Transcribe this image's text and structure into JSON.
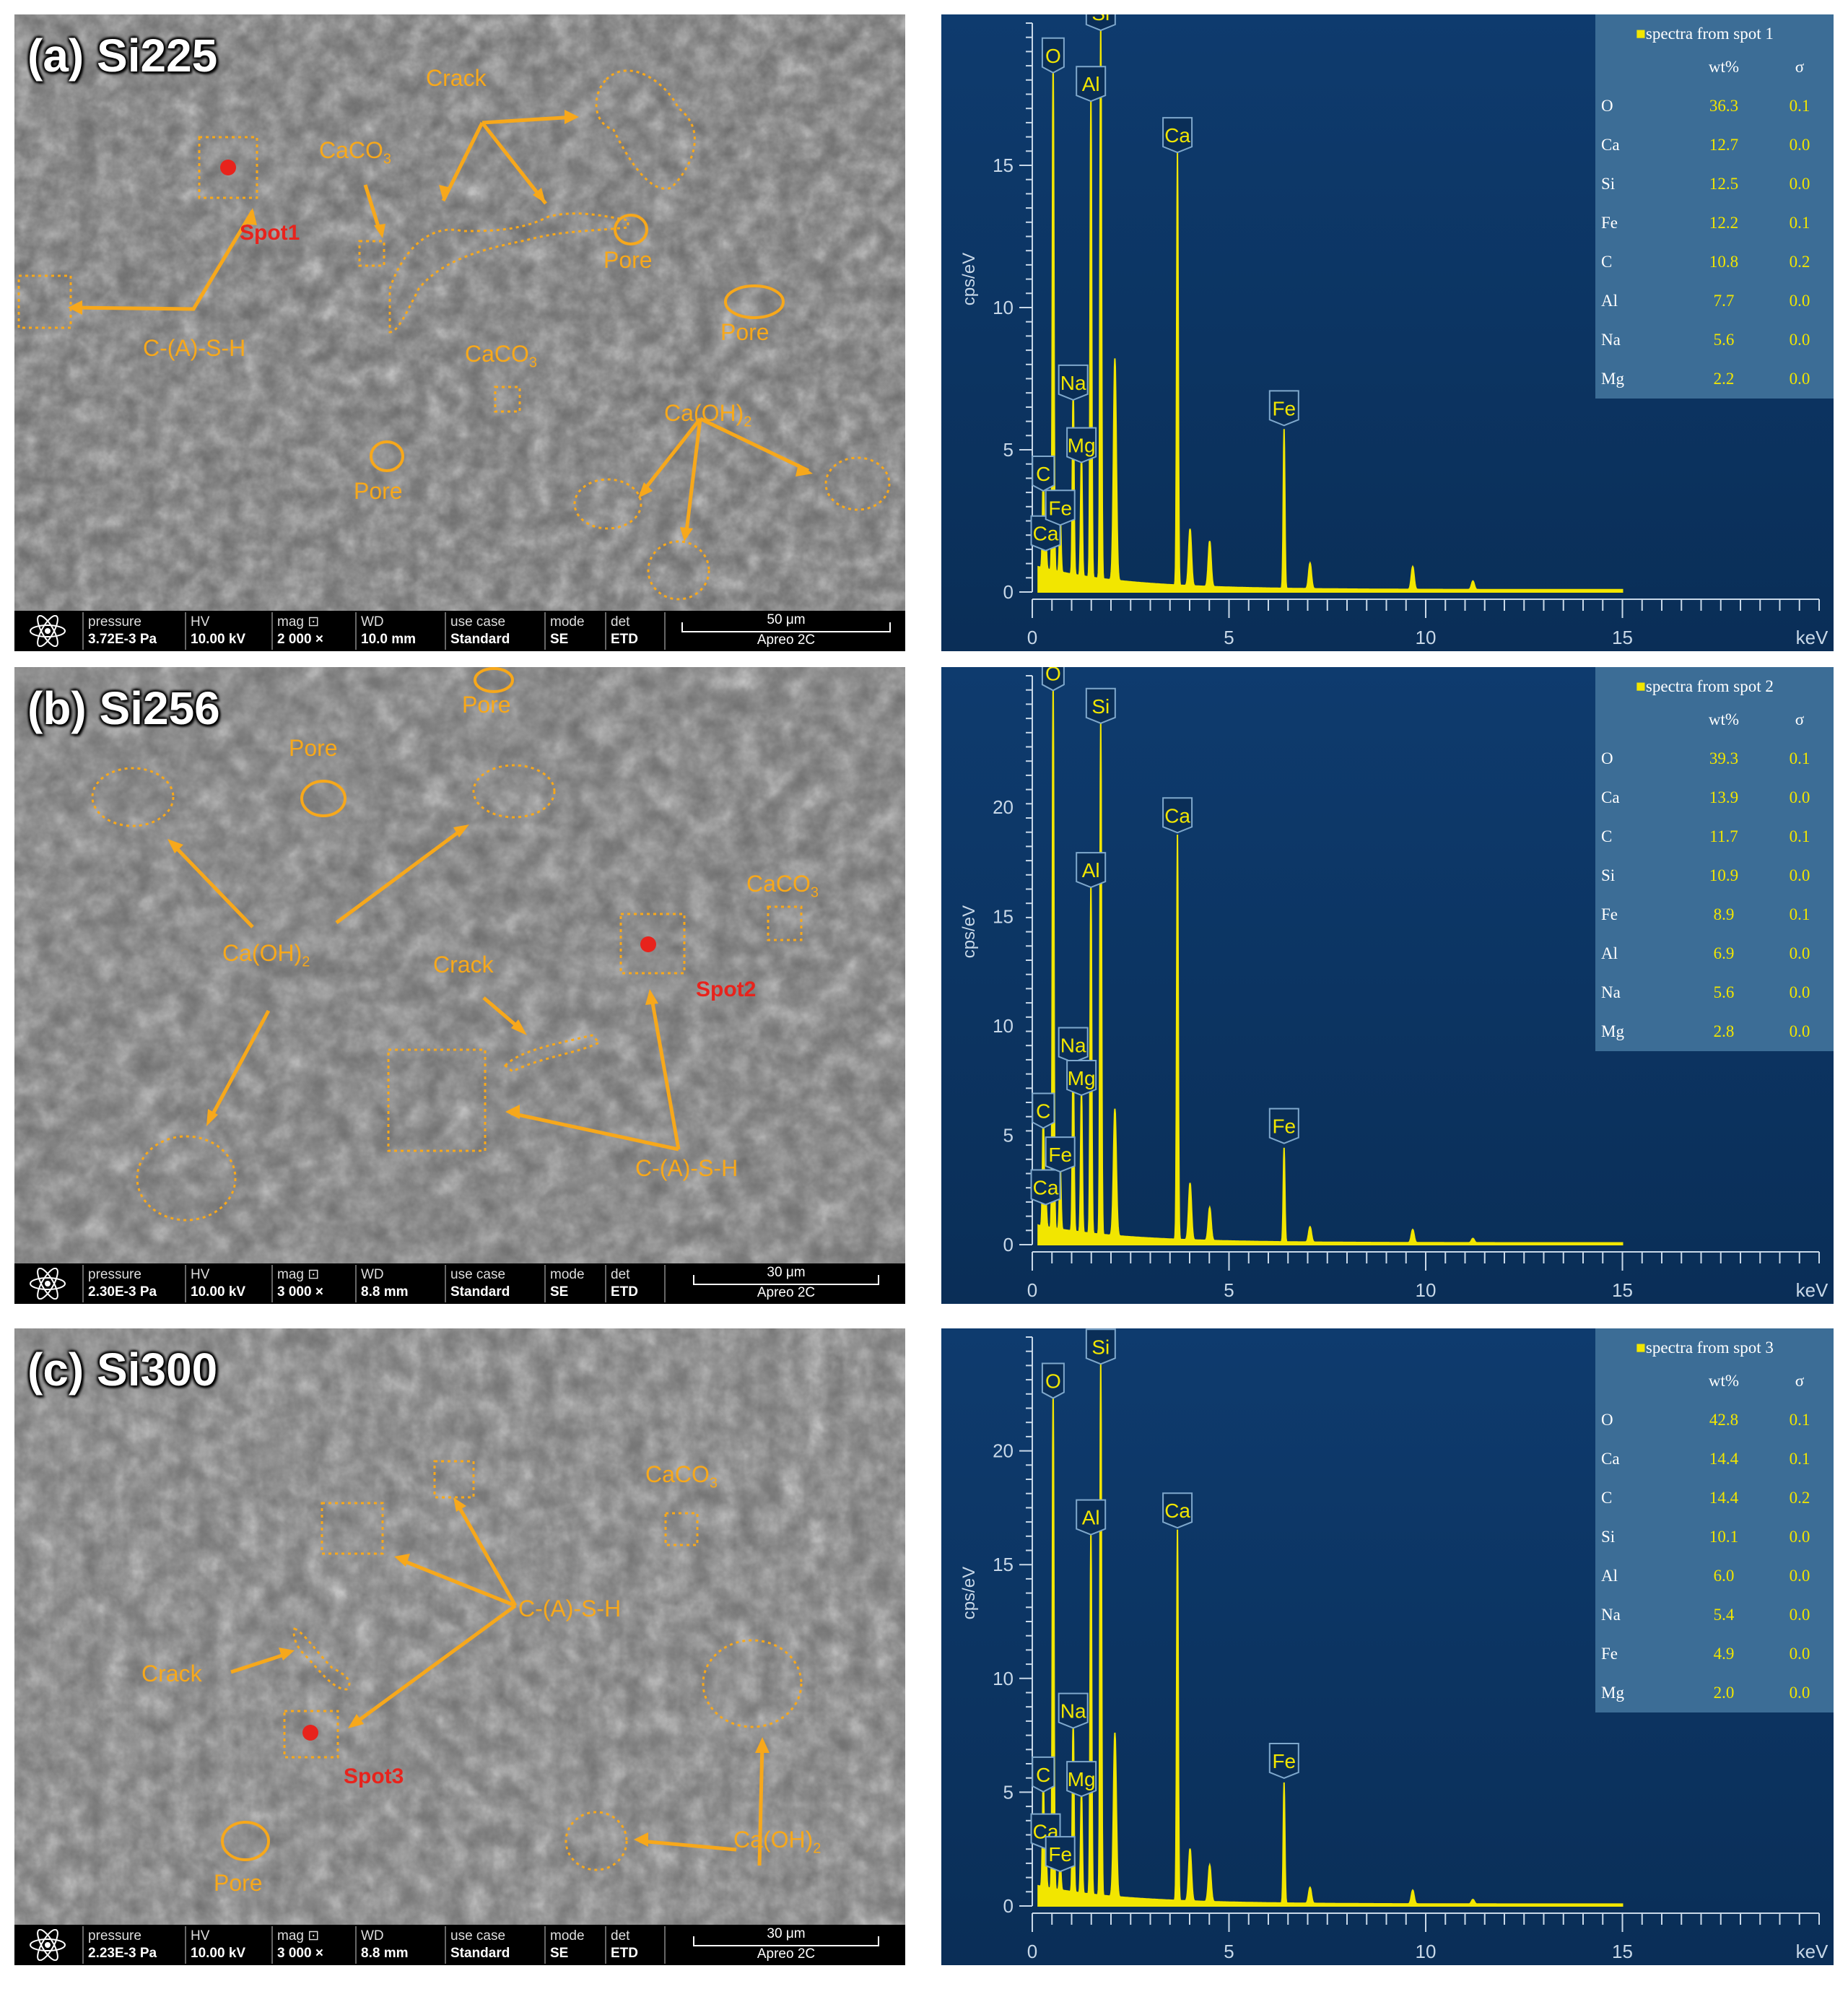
{
  "panels": [
    {
      "title": "(a) Si225",
      "spot_label": "Spot1",
      "annotations": {
        "crack": "Crack",
        "caco3_1": "CaCO",
        "caco3_2": "CaCO",
        "caco3_sub": "3",
        "pore_1": "Pore",
        "pore_2": "Pore",
        "pore_3": "Pore",
        "cash": "C-(A)-S-H",
        "caoh": "Ca(OH)",
        "caoh_sub": "2"
      },
      "infobar": {
        "pressure_k": "pressure",
        "pressure_v": "3.72E-3 Pa",
        "hv_k": "HV",
        "hv_v": "10.00 kV",
        "mag_k": "mag ⊡",
        "mag_v": "2 000 ×",
        "wd_k": "WD",
        "wd_v": "10.0 mm",
        "usecase_k": "use case",
        "usecase_v": "Standard",
        "mode_k": "mode",
        "mode_v": "SE",
        "det_k": "det",
        "det_v": "ETD",
        "scale": "50 μm",
        "instrument": "Apreo 2C"
      },
      "eds": {
        "table_title": "spectra from spot 1",
        "col_wt": "wt%",
        "col_sigma": "σ",
        "rows": [
          {
            "el": "O",
            "wt": "36.3",
            "s": "0.1"
          },
          {
            "el": "Ca",
            "wt": "12.7",
            "s": "0.0"
          },
          {
            "el": "Si",
            "wt": "12.5",
            "s": "0.0"
          },
          {
            "el": "Fe",
            "wt": "12.2",
            "s": "0.1"
          },
          {
            "el": "C",
            "wt": "10.8",
            "s": "0.2"
          },
          {
            "el": "Al",
            "wt": "7.7",
            "s": "0.0"
          },
          {
            "el": "Na",
            "wt": "5.6",
            "s": "0.0"
          },
          {
            "el": "Mg",
            "wt": "2.2",
            "s": "0.0"
          }
        ]
      }
    },
    {
      "title": "(b) Si256",
      "spot_label": "Spot2",
      "annotations": {
        "crack": "Crack",
        "caco3_1": "CaCO",
        "caco3_sub": "3",
        "pore_1": "Pore",
        "pore_2": "Pore",
        "cash": "C-(A)-S-H",
        "caoh": "Ca(OH)",
        "caoh_sub": "2"
      },
      "infobar": {
        "pressure_k": "pressure",
        "pressure_v": "2.30E-3 Pa",
        "hv_k": "HV",
        "hv_v": "10.00 kV",
        "mag_k": "mag ⊡",
        "mag_v": "3 000 ×",
        "wd_k": "WD",
        "wd_v": "8.8 mm",
        "usecase_k": "use case",
        "usecase_v": "Standard",
        "mode_k": "mode",
        "mode_v": "SE",
        "det_k": "det",
        "det_v": "ETD",
        "scale": "30 μm",
        "instrument": "Apreo 2C"
      },
      "eds": {
        "table_title": "spectra from spot 2",
        "col_wt": "wt%",
        "col_sigma": "σ",
        "rows": [
          {
            "el": "O",
            "wt": "39.3",
            "s": "0.1"
          },
          {
            "el": "Ca",
            "wt": "13.9",
            "s": "0.0"
          },
          {
            "el": "C",
            "wt": "11.7",
            "s": "0.1"
          },
          {
            "el": "Si",
            "wt": "10.9",
            "s": "0.0"
          },
          {
            "el": "Fe",
            "wt": "8.9",
            "s": "0.1"
          },
          {
            "el": "Al",
            "wt": "6.9",
            "s": "0.0"
          },
          {
            "el": "Na",
            "wt": "5.6",
            "s": "0.0"
          },
          {
            "el": "Mg",
            "wt": "2.8",
            "s": "0.0"
          }
        ]
      }
    },
    {
      "title": "(c) Si300",
      "spot_label": "Spot3",
      "annotations": {
        "crack": "Crack",
        "caco3_1": "CaCO",
        "caco3_sub": "3",
        "pore_1": "Pore",
        "cash": "C-(A)-S-H",
        "caoh": "Ca(OH)",
        "caoh_sub": "2"
      },
      "infobar": {
        "pressure_k": "pressure",
        "pressure_v": "2.23E-3 Pa",
        "hv_k": "HV",
        "hv_v": "10.00 kV",
        "mag_k": "mag ⊡",
        "mag_v": "3 000 ×",
        "wd_k": "WD",
        "wd_v": "8.8 mm",
        "usecase_k": "use case",
        "usecase_v": "Standard",
        "mode_k": "mode",
        "mode_v": "SE",
        "det_k": "det",
        "det_v": "ETD",
        "scale": "30 μm",
        "instrument": "Apreo 2C"
      },
      "eds": {
        "table_title": "spectra from spot 3",
        "col_wt": "wt%",
        "col_sigma": "σ",
        "rows": [
          {
            "el": "O",
            "wt": "42.8",
            "s": "0.1"
          },
          {
            "el": "Ca",
            "wt": "14.4",
            "s": "0.1"
          },
          {
            "el": "C",
            "wt": "14.4",
            "s": "0.2"
          },
          {
            "el": "Si",
            "wt": "10.1",
            "s": "0.0"
          },
          {
            "el": "Al",
            "wt": "6.0",
            "s": "0.0"
          },
          {
            "el": "Na",
            "wt": "5.4",
            "s": "0.0"
          },
          {
            "el": "Fe",
            "wt": "4.9",
            "s": "0.0"
          },
          {
            "el": "Mg",
            "wt": "2.0",
            "s": "0.0"
          }
        ]
      }
    }
  ],
  "chart_data": [
    {
      "type": "line",
      "xlabel": "keV",
      "ylabel": "cps/eV",
      "xlim": [
        0,
        20
      ],
      "ylim": [
        0,
        20
      ],
      "xticks": [
        0,
        5,
        10,
        15
      ],
      "yticks": [
        0,
        5,
        10,
        15
      ],
      "peaks": [
        {
          "label": "Ca",
          "x": 0.34,
          "y": 1.2
        },
        {
          "label": "C",
          "x": 0.28,
          "y": 3.3
        },
        {
          "label": "O",
          "x": 0.53,
          "y": 18
        },
        {
          "label": "Fe",
          "x": 0.71,
          "y": 2.1
        },
        {
          "label": "Na",
          "x": 1.04,
          "y": 6.5
        },
        {
          "label": "Mg",
          "x": 1.25,
          "y": 4.3
        },
        {
          "label": "Al",
          "x": 1.49,
          "y": 17
        },
        {
          "label": "Si",
          "x": 1.74,
          "y": 19.5
        },
        {
          "label": "Ca",
          "x": 3.69,
          "y": 15.2
        },
        {
          "label": "Fe",
          "x": 6.4,
          "y": 5.6
        }
      ],
      "minor_peaks": [
        [
          2.1,
          7.8
        ],
        [
          4.01,
          2.0
        ],
        [
          4.51,
          1.6
        ],
        [
          7.06,
          0.9
        ],
        [
          9.67,
          0.8
        ],
        [
          11.2,
          0.3
        ]
      ]
    },
    {
      "type": "line",
      "xlabel": "keV",
      "ylabel": "cps/eV",
      "xlim": [
        0,
        20
      ],
      "ylim": [
        0,
        26
      ],
      "xticks": [
        0,
        5,
        10,
        15
      ],
      "yticks": [
        0,
        5,
        10,
        15,
        20
      ],
      "peaks": [
        {
          "label": "Ca",
          "x": 0.34,
          "y": 1.5
        },
        {
          "label": "C",
          "x": 0.28,
          "y": 5.0
        },
        {
          "label": "O",
          "x": 0.53,
          "y": 25
        },
        {
          "label": "Fe",
          "x": 0.71,
          "y": 3.0
        },
        {
          "label": "Na",
          "x": 1.04,
          "y": 8.0
        },
        {
          "label": "Mg",
          "x": 1.25,
          "y": 6.5
        },
        {
          "label": "Al",
          "x": 1.49,
          "y": 16
        },
        {
          "label": "Si",
          "x": 1.74,
          "y": 23.5
        },
        {
          "label": "Ca",
          "x": 3.69,
          "y": 18.5
        },
        {
          "label": "Fe",
          "x": 6.4,
          "y": 4.3
        }
      ],
      "minor_peaks": [
        [
          2.1,
          5.8
        ],
        [
          4.01,
          2.6
        ],
        [
          4.51,
          1.5
        ],
        [
          7.06,
          0.7
        ],
        [
          9.67,
          0.6
        ],
        [
          11.2,
          0.2
        ]
      ]
    },
    {
      "type": "line",
      "xlabel": "keV",
      "ylabel": "cps/eV",
      "xlim": [
        0,
        20
      ],
      "ylim": [
        0,
        25
      ],
      "xticks": [
        0,
        5,
        10,
        15
      ],
      "yticks": [
        0,
        5,
        10,
        15,
        20
      ],
      "peaks": [
        {
          "label": "Ca",
          "x": 0.34,
          "y": 2.2
        },
        {
          "label": "C",
          "x": 0.28,
          "y": 4.7
        },
        {
          "label": "O",
          "x": 0.53,
          "y": 22
        },
        {
          "label": "Fe",
          "x": 0.71,
          "y": 1.2
        },
        {
          "label": "Na",
          "x": 1.04,
          "y": 7.5
        },
        {
          "label": "Mg",
          "x": 1.25,
          "y": 4.5
        },
        {
          "label": "Al",
          "x": 1.49,
          "y": 16
        },
        {
          "label": "Si",
          "x": 1.74,
          "y": 23.5
        },
        {
          "label": "Ca",
          "x": 3.69,
          "y": 16.3
        },
        {
          "label": "Fe",
          "x": 6.4,
          "y": 5.3
        }
      ],
      "minor_peaks": [
        [
          2.1,
          7.2
        ],
        [
          4.01,
          2.3
        ],
        [
          4.51,
          1.6
        ],
        [
          7.06,
          0.7
        ],
        [
          9.67,
          0.6
        ],
        [
          11.2,
          0.2
        ]
      ]
    }
  ]
}
